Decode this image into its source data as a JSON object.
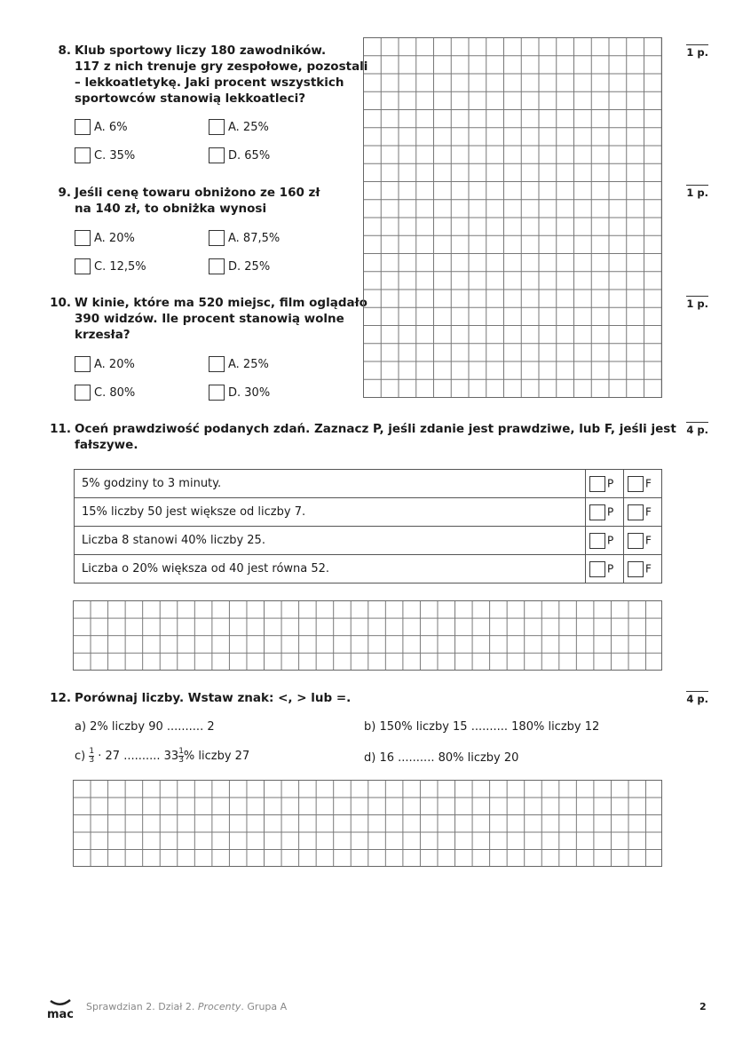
{
  "q8": {
    "number": "8.",
    "text": [
      "Klub sportowy liczy 180 zawodników.",
      "117 z nich trenuje gry zespołowe, pozostali",
      "– lekkoatletykę. Jaki procent wszystkich",
      "sportowców stanowią lekkoatleci?"
    ],
    "options": [
      "A. 6%",
      "A. 25%",
      "C. 35%",
      "D. 65%"
    ],
    "points": "1 p."
  },
  "q9": {
    "number": "9.",
    "text": [
      "Jeśli cenę towaru obniżono ze 160 zł",
      "na 140 zł, to obniżka wynosi"
    ],
    "options": [
      "A. 20%",
      "A. 87,5%",
      "C. 12,5%",
      "D. 25%"
    ],
    "points": "1 p."
  },
  "q10": {
    "number": "10.",
    "text": [
      "W kinie, które ma 520 miejsc, film oglądało",
      "390 widzów. Ile procent stanowią wolne",
      "krzesła?"
    ],
    "options": [
      "A. 20%",
      "A. 25%",
      "C. 80%",
      "D. 30%"
    ],
    "points": "1 p."
  },
  "q11": {
    "number": "11.",
    "text": [
      "Oceń prawdziwość podanych zdań. Zaznacz P, jeśli zdanie jest prawdziwe, lub F, jeśli jest",
      "fałszywe."
    ],
    "points": "4 p.",
    "p_label": "P",
    "f_label": "F",
    "rows": [
      "5% godziny to 3 minuty.",
      "15% liczby 50 jest większe od liczby 7.",
      "Liczba 8 stanowi 40% liczby 25.",
      "Liczba o 20% większa od 40 jest równa 52."
    ]
  },
  "q12": {
    "number": "12.",
    "text": "Porównaj liczby. Wstaw znak: <, > lub =.",
    "points": "4 p.",
    "a": "a) 2% liczby 90 .......... 2",
    "b": "b) 150% liczby 15 .......... 180% liczby 12",
    "c_prefix": "c)",
    "c_num": "1",
    "c_den": "3",
    "c_mid": "· 27 .......... 33",
    "c_suffix": "% liczby 27",
    "d": "d) 16 .......... 80% liczby 20"
  },
  "footer": {
    "logo": "mac",
    "text_before": "Sprawdzian 2. Dział 2. ",
    "text_italic": "Procenty",
    "text_after": ". Grupa A",
    "page": "2"
  }
}
